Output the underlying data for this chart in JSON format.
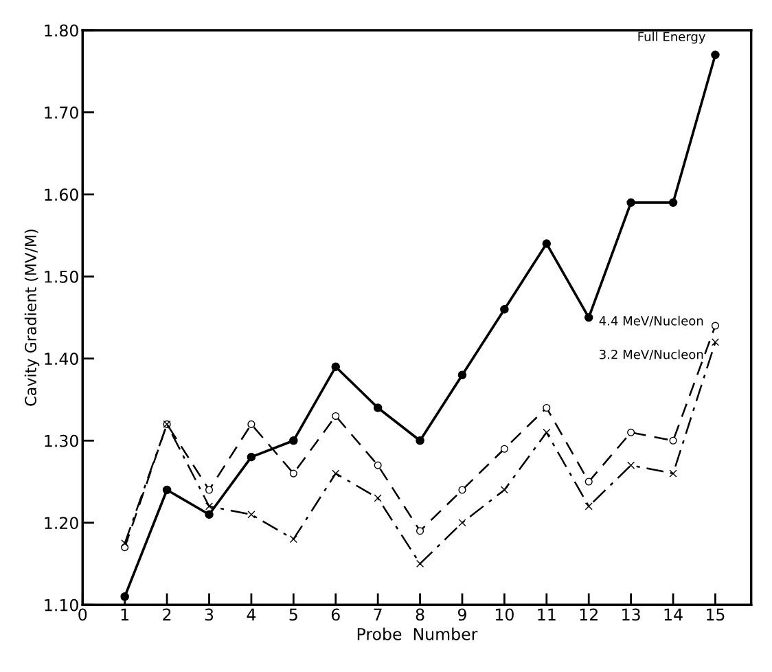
{
  "chart_data": {
    "type": "line",
    "xlabel": "Probe  Number",
    "ylabel": "Cavity Gradient (MV/M)",
    "x": [
      1,
      2,
      3,
      4,
      5,
      6,
      7,
      8,
      9,
      10,
      11,
      12,
      13,
      14,
      15
    ],
    "series": [
      {
        "name": "Full Energy",
        "color": "#000000",
        "line_style": "solid",
        "marker": "circle",
        "values": [
          1.11,
          1.24,
          1.21,
          1.28,
          1.3,
          1.39,
          1.34,
          1.3,
          1.38,
          1.46,
          1.54,
          1.45,
          1.59,
          1.59,
          1.77
        ]
      },
      {
        "name": "4.4 MeV/Nucleon",
        "color": "#000000",
        "line_style": "dashed",
        "marker": "circle",
        "values": [
          1.17,
          1.32,
          1.24,
          1.32,
          1.26,
          1.33,
          1.27,
          1.19,
          1.24,
          1.29,
          1.34,
          1.25,
          1.31,
          1.3,
          1.44
        ]
      },
      {
        "name": "3.2 MeV/Nucleon",
        "color": "#000000",
        "line_style": "dashdot",
        "marker": "cross",
        "values": [
          1.175,
          1.32,
          1.22,
          1.21,
          1.18,
          1.26,
          1.23,
          1.15,
          1.2,
          1.24,
          1.31,
          1.22,
          1.27,
          1.26,
          1.42
        ]
      }
    ],
    "xlim": [
      0,
      15.85
    ],
    "xticks": [
      0,
      1,
      2,
      3,
      4,
      5,
      6,
      7,
      8,
      9,
      10,
      11,
      12,
      13,
      14,
      15
    ],
    "ylim": [
      1.1,
      1.8
    ],
    "yticks": [
      {
        "value": 1.1,
        "label": "1.10"
      },
      {
        "value": 1.2,
        "label": "1.20"
      },
      {
        "value": 1.3,
        "label": "1.30"
      },
      {
        "value": 1.4,
        "label": "1.40"
      },
      {
        "value": 1.5,
        "label": "1.50"
      },
      {
        "value": 1.6,
        "label": "1.60"
      },
      {
        "value": 1.7,
        "label": "1.70"
      },
      {
        "value": 1.8,
        "label": "1.80"
      }
    ],
    "grid": false,
    "legend": false
  }
}
